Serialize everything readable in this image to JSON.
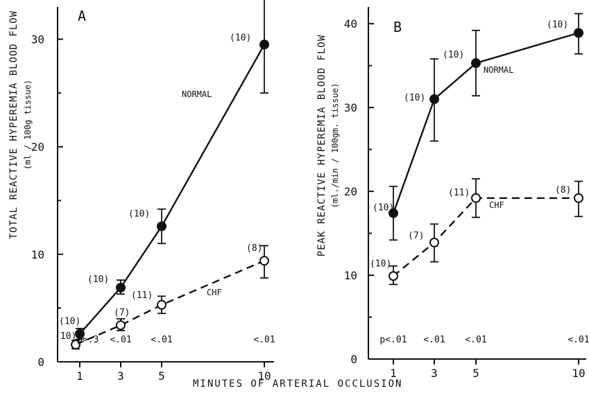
{
  "x_axis_title": "MINUTES OF ARTERIAL OCCLUSION",
  "chart_data": [
    {
      "type": "line",
      "panel": "A",
      "ylabel": "TOTAL REACTIVE HYPEREMIA BLOOD FLOW",
      "yunit": "(ml / 100g tissue)",
      "xlabel": "MINUTES OF ARTERIAL OCCLUSION",
      "x": [
        1,
        3,
        5,
        10
      ],
      "x_tick_labels": [
        "1",
        "3",
        "5",
        "10"
      ],
      "xlim": [
        0,
        10.5
      ],
      "ylim": [
        0,
        33
      ],
      "y_ticks": [
        0,
        10,
        20,
        30
      ],
      "y_tick_labels": [
        "0",
        "10",
        "20",
        "30"
      ],
      "grid": false,
      "series": [
        {
          "name": "NORMAL",
          "style": "solid-filled",
          "x": [
            1,
            3,
            5,
            10
          ],
          "values": [
            2.6,
            6.9,
            12.6,
            29.5
          ],
          "err_low": [
            2.1,
            6.3,
            11.0,
            25.0
          ],
          "err_high": [
            3.1,
            7.6,
            14.2,
            34.1
          ],
          "n_labels": [
            "(10)",
            "(10)",
            "(10)",
            "(10)"
          ]
        },
        {
          "name": "CHF",
          "style": "dashed-open",
          "x": [
            0.8,
            3,
            5,
            10
          ],
          "values": [
            1.6,
            3.4,
            5.3,
            9.4
          ],
          "err_low": [
            1.2,
            2.9,
            4.5,
            7.8
          ],
          "err_high": [
            2.0,
            4.0,
            6.1,
            10.8
          ],
          "n_labels": [
            "(10)",
            "(7)",
            "(11)",
            "(8)"
          ]
        }
      ],
      "p_values": [
        "p>.3",
        "<.01",
        "<.01",
        "<.01"
      ]
    },
    {
      "type": "line",
      "panel": "B",
      "ylabel": "PEAK REACTIVE HYPEREMIA BLOOD FLOW",
      "yunit": "(ml./min / 100gm. tissue)",
      "xlabel": "MINUTES OF ARTERIAL OCCLUSION",
      "x": [
        1,
        3,
        5,
        10
      ],
      "x_tick_labels": [
        "1",
        "3",
        "5",
        "10"
      ],
      "xlim": [
        0,
        10.5
      ],
      "ylim": [
        0,
        42
      ],
      "y_ticks": [
        0,
        10,
        20,
        30,
        40
      ],
      "y_tick_labels": [
        "0",
        "10",
        "20",
        "30",
        "40"
      ],
      "grid": false,
      "series": [
        {
          "name": "NORMAL",
          "style": "solid-filled",
          "x": [
            1,
            3,
            5,
            10
          ],
          "values": [
            17.4,
            31.0,
            35.3,
            38.9
          ],
          "err_low": [
            14.2,
            26.0,
            31.4,
            36.4
          ],
          "err_high": [
            20.6,
            35.8,
            39.2,
            41.2
          ],
          "n_labels": [
            "(10)",
            "(10)",
            "(10)",
            "(10)"
          ]
        },
        {
          "name": "CHF",
          "style": "dashed-open",
          "x": [
            1,
            3,
            5,
            10
          ],
          "values": [
            9.9,
            13.9,
            19.2,
            19.2
          ],
          "err_low": [
            8.9,
            11.6,
            16.9,
            17.0
          ],
          "err_high": [
            11.1,
            16.1,
            21.5,
            21.2
          ],
          "n_labels": [
            "(10)",
            "(7)",
            "(11)",
            "(8)"
          ]
        }
      ],
      "p_values": [
        "p<.01",
        "<.01",
        "<.01",
        "<.01"
      ]
    }
  ]
}
